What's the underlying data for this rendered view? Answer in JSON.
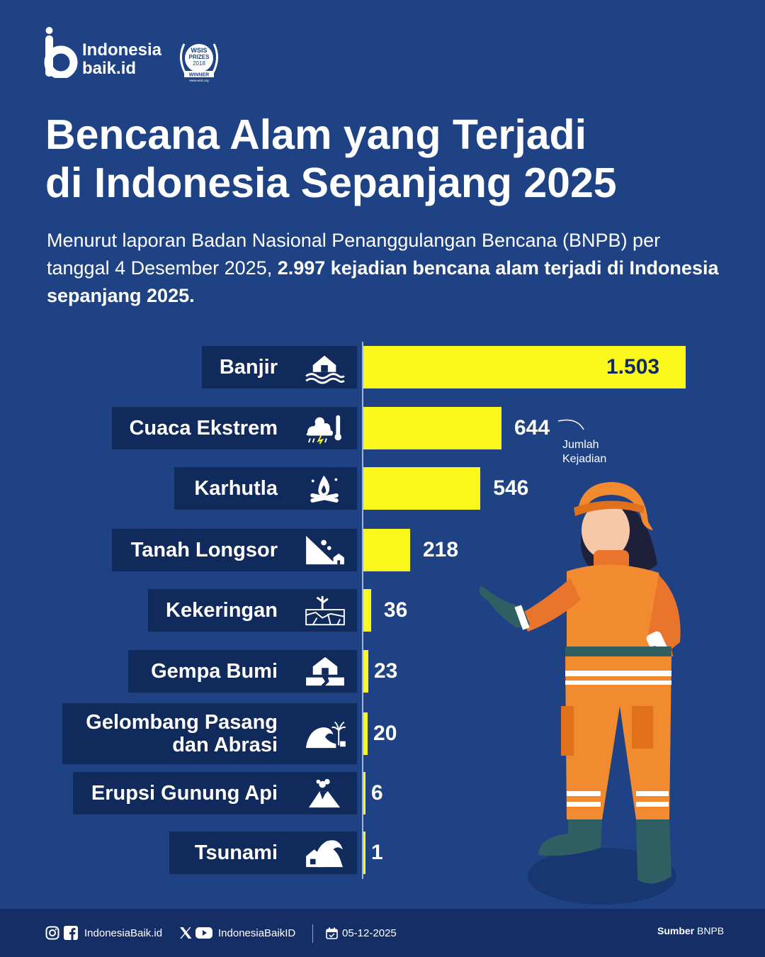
{
  "brand": {
    "line1": "Indonesia",
    "line2": "baik.id",
    "award": {
      "line1": "WSIS",
      "line2": "PRIZES",
      "year": "2018",
      "status": "WINNER",
      "site": "www.wsis.org"
    }
  },
  "title_line1": "Bencana Alam yang Terjadi",
  "title_line2": "di Indonesia Sepanjang 2025",
  "subtitle_plain": "Menurut laporan Badan Nasional Penanggulangan Bencana (BNPB) per tanggal 4 Desember 2025, ",
  "subtitle_bold": "2.997 kejadian bencana alam terjadi di Indonesia sepanjang 2025.",
  "chart_data": {
    "type": "bar",
    "orientation": "horizontal",
    "categories": [
      "Banjir",
      "Cuaca Ekstrem",
      "Karhutla",
      "Tanah Longsor",
      "Kekeringan",
      "Gempa Bumi",
      "Gelombang Pasang dan Abrasi",
      "Erupsi Gunung Api",
      "Tsunami"
    ],
    "category_lines": [
      [
        "Banjir"
      ],
      [
        "Cuaca Ekstrem"
      ],
      [
        "Karhutla"
      ],
      [
        "Tanah Longsor"
      ],
      [
        "Kekeringan"
      ],
      [
        "Gempa Bumi"
      ],
      [
        "Gelombang Pasang",
        "dan Abrasi"
      ],
      [
        "Erupsi Gunung Api"
      ],
      [
        "Tsunami"
      ]
    ],
    "values": [
      1503,
      644,
      546,
      218,
      36,
      23,
      20,
      6,
      1
    ],
    "value_labels": [
      "1.503",
      "644",
      "546",
      "218",
      "36",
      "23",
      "20",
      "6",
      "1"
    ],
    "icons": [
      "flooded-house-icon",
      "storm-thermometer-icon",
      "campfire-icon",
      "landslide-icon",
      "drought-icon",
      "earthquake-house-icon",
      "wave-abrasion-icon",
      "volcano-icon",
      "tsunami-house-icon"
    ],
    "annotation": "Jumlah Kejadian",
    "xlim": [
      0,
      1503
    ],
    "bar_color": "#fbf91c",
    "label_box_color": "#112a5c"
  },
  "footer": {
    "social1": "IndonesiaBaik.id",
    "social2": "IndonesiaBaikID",
    "date": "05-12-2025",
    "source_label": "Sumber",
    "source": "BNPB"
  },
  "colors": {
    "background": "#1e4283",
    "footer": "#152f66",
    "accent": "#fbf91c"
  }
}
